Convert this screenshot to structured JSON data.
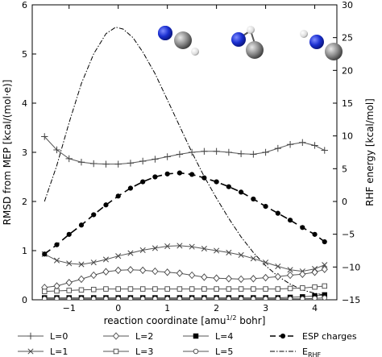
{
  "chart_data": {
    "type": "line",
    "title": "",
    "xlabel": "reaction coordinate [amu",
    "xlabel_sup": "1/2",
    "xlabel_tail": " bohr]",
    "ylabel": "RMSD from MEP [kcal/(mol·e)]",
    "ylabel_right": "RHF energy [kcal/mol]",
    "xlim": [
      -1.75,
      4.45
    ],
    "ylim": [
      0,
      6
    ],
    "ylim_right": [
      -15,
      30
    ],
    "x_ticks": [
      -1,
      0,
      1,
      2,
      3,
      4
    ],
    "x_tick_labels": [
      "−1",
      "0",
      "1",
      "2",
      "3",
      "4"
    ],
    "y_ticks": [
      0,
      1,
      2,
      3,
      4,
      5,
      6
    ],
    "y_tick_labels": [
      "0",
      "1",
      "2",
      "3",
      "4",
      "5",
      "6"
    ],
    "y_right_ticks": [
      -15,
      -10,
      -5,
      0,
      5,
      10,
      15,
      20,
      25,
      30
    ],
    "y_right_tick_labels": [
      "−15",
      "−10",
      "−5",
      "0",
      "5",
      "10",
      "15",
      "20",
      "25",
      "30"
    ],
    "grid": false,
    "legend_position": "bottom-outside",
    "x": [
      -1.5,
      -1.25,
      -1.0,
      -0.75,
      -0.5,
      -0.25,
      0.0,
      0.25,
      0.5,
      0.75,
      1.0,
      1.25,
      1.5,
      1.75,
      2.0,
      2.25,
      2.5,
      2.75,
      3.0,
      3.25,
      3.5,
      3.75,
      4.0,
      4.2
    ],
    "series": [
      {
        "name": "L=0",
        "marker": "plus",
        "dash": "solid",
        "axis": "left",
        "values": [
          3.32,
          3.05,
          2.87,
          2.8,
          2.77,
          2.76,
          2.76,
          2.78,
          2.82,
          2.86,
          2.91,
          2.96,
          3.0,
          3.02,
          3.02,
          3.0,
          2.97,
          2.96,
          3.0,
          3.08,
          3.16,
          3.2,
          3.14,
          3.04
        ]
      },
      {
        "name": "L=1",
        "marker": "x",
        "dash": "solid",
        "axis": "left",
        "values": [
          0.93,
          0.8,
          0.74,
          0.72,
          0.76,
          0.82,
          0.89,
          0.95,
          1.01,
          1.05,
          1.09,
          1.1,
          1.08,
          1.04,
          1.0,
          0.96,
          0.91,
          0.84,
          0.76,
          0.68,
          0.61,
          0.58,
          0.63,
          0.71
        ]
      },
      {
        "name": "L=2",
        "marker": "diamond",
        "dash": "solid",
        "axis": "left",
        "values": [
          0.25,
          0.28,
          0.35,
          0.42,
          0.5,
          0.57,
          0.6,
          0.61,
          0.6,
          0.58,
          0.56,
          0.54,
          0.5,
          0.46,
          0.44,
          0.43,
          0.42,
          0.43,
          0.45,
          0.47,
          0.5,
          0.52,
          0.56,
          0.62
        ]
      },
      {
        "name": "L=3",
        "marker": "square-open",
        "dash": "solid",
        "axis": "left",
        "values": [
          0.17,
          0.18,
          0.19,
          0.2,
          0.21,
          0.22,
          0.22,
          0.22,
          0.22,
          0.22,
          0.22,
          0.22,
          0.22,
          0.22,
          0.22,
          0.22,
          0.22,
          0.22,
          0.22,
          0.22,
          0.23,
          0.24,
          0.26,
          0.28
        ]
      },
      {
        "name": "L=4",
        "marker": "square-filled",
        "dash": "solid",
        "axis": "left",
        "values": [
          0.04,
          0.04,
          0.04,
          0.04,
          0.04,
          0.04,
          0.04,
          0.04,
          0.04,
          0.04,
          0.04,
          0.04,
          0.04,
          0.04,
          0.04,
          0.04,
          0.04,
          0.04,
          0.04,
          0.04,
          0.05,
          0.06,
          0.08,
          0.1
        ]
      },
      {
        "name": "L=5",
        "marker": "circle-open",
        "dash": "solid",
        "axis": "left",
        "values": [
          0.02,
          0.02,
          0.02,
          0.02,
          0.02,
          0.02,
          0.02,
          0.02,
          0.02,
          0.02,
          0.02,
          0.02,
          0.02,
          0.02,
          0.02,
          0.02,
          0.02,
          0.02,
          0.02,
          0.02,
          0.02,
          0.02,
          0.03,
          0.04
        ]
      },
      {
        "name": "ESP charges",
        "marker": "circle-filled",
        "dash": "dashed",
        "axis": "left",
        "values": [
          0.93,
          1.12,
          1.33,
          1.52,
          1.73,
          1.93,
          2.11,
          2.27,
          2.4,
          2.5,
          2.56,
          2.58,
          2.55,
          2.48,
          2.4,
          2.3,
          2.19,
          2.05,
          1.9,
          1.76,
          1.62,
          1.47,
          1.33,
          1.18
        ]
      }
    ],
    "rhf_series": {
      "name": "E",
      "name_sub": "RHF",
      "dash": "dashdot",
      "axis": "right",
      "x": [
        -1.5,
        -1.25,
        -1.0,
        -0.75,
        -0.5,
        -0.25,
        -0.05,
        0.1,
        0.3,
        0.5,
        0.75,
        1.0,
        1.25,
        1.5,
        1.75,
        2.0,
        2.25,
        2.5,
        2.75,
        3.0,
        3.25,
        3.5,
        3.75,
        4.0,
        4.2
      ],
      "values": [
        0.0,
        5.5,
        12.0,
        18.0,
        22.5,
        25.6,
        26.6,
        26.3,
        25.0,
        22.8,
        19.5,
        15.5,
        11.5,
        7.5,
        3.8,
        0.5,
        -2.6,
        -5.4,
        -7.8,
        -9.8,
        -11.4,
        -12.6,
        -13.5,
        -14.0,
        -14.3
      ]
    },
    "legend_order": [
      "L=0",
      "L=1",
      "L=2",
      "L=3",
      "L=4",
      "L=5",
      "ESP charges",
      "E_RHF"
    ]
  }
}
